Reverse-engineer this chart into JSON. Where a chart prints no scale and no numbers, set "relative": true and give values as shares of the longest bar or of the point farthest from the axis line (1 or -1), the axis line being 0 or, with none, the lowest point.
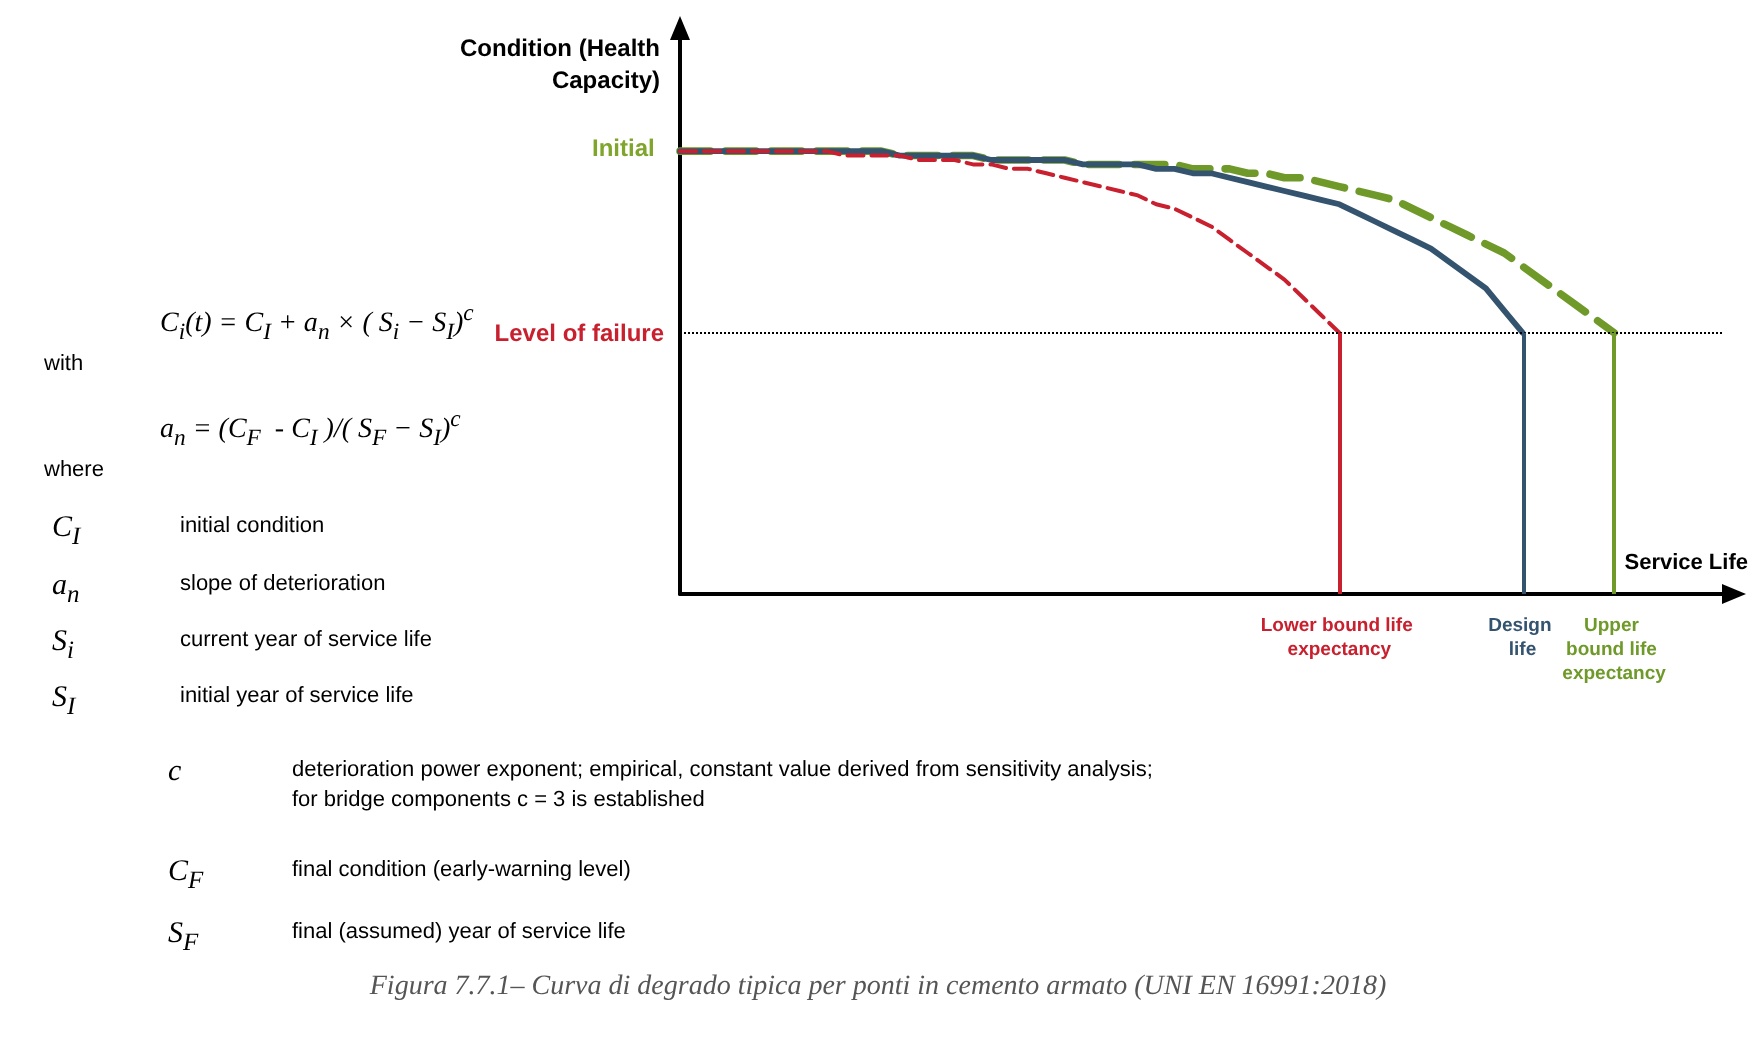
{
  "chart_data": {
    "type": "line",
    "title": "Figura 7.7.1– Curva di degrado tipica per ponti in cemento armato (UNI EN 16991:2018)",
    "xlabel": "Service Life",
    "ylabel": "Condition (Health Capacity)",
    "relative": true,
    "marker": "none",
    "categories": [
      null,
      null,
      null,
      null,
      null,
      null,
      null,
      null,
      null,
      null,
      null,
      null,
      null,
      null,
      null,
      null,
      null,
      null,
      null,
      null,
      null,
      null,
      null,
      null,
      null,
      null,
      null,
      null,
      null,
      null,
      null,
      null,
      null,
      null,
      null,
      null,
      "Lower bound life expectancy",
      null,
      null,
      null,
      null,
      null,
      null,
      null,
      null,
      null,
      "Design life",
      null,
      null,
      null,
      null,
      "Upper bound life expectancy",
      null,
      null,
      null,
      null,
      null,
      null
    ],
    "series": [
      {
        "color": "#c8202e",
        "line_style": "dashed",
        "values": [
          1.0,
          1.0,
          1.0,
          1.0,
          1.0,
          1.0,
          1.0,
          1.0,
          1.0,
          0.99,
          0.99,
          0.99,
          0.99,
          0.98,
          0.98,
          0.98,
          0.97,
          0.97,
          0.96,
          0.96,
          0.95,
          0.94,
          0.93,
          0.92,
          0.91,
          0.9,
          0.88,
          0.87,
          0.85,
          0.83,
          0.8,
          0.77,
          0.74,
          0.71,
          0.67,
          0.63,
          0.59,
          null,
          null,
          null,
          null,
          null,
          null,
          null,
          null,
          null,
          null,
          null,
          null,
          null,
          null,
          null,
          null,
          null,
          null,
          null,
          null,
          null
        ]
      },
      {
        "color": "#34536f",
        "line_style": "solid",
        "values": [
          1.0,
          1.0,
          1.0,
          1.0,
          1.0,
          1.0,
          1.0,
          1.0,
          1.0,
          1.0,
          1.0,
          1.0,
          0.99,
          0.99,
          0.99,
          0.99,
          0.99,
          0.98,
          0.98,
          0.98,
          0.98,
          0.98,
          0.97,
          0.97,
          0.97,
          0.97,
          0.96,
          0.96,
          0.95,
          0.95,
          0.94,
          0.93,
          0.92,
          0.91,
          0.9,
          0.89,
          0.88,
          0.86,
          0.84,
          0.82,
          0.8,
          0.78,
          0.75,
          0.72,
          0.69,
          0.64,
          0.59,
          null,
          null,
          null,
          null,
          null,
          null,
          null,
          null,
          null,
          null,
          null
        ]
      },
      {
        "color": "#6f9a2a",
        "line_style": "dashed",
        "values": [
          1.0,
          1.0,
          1.0,
          1.0,
          1.0,
          1.0,
          1.0,
          1.0,
          1.0,
          1.0,
          1.0,
          1.0,
          0.99,
          0.99,
          0.99,
          0.99,
          0.99,
          0.98,
          0.98,
          0.98,
          0.98,
          0.98,
          0.97,
          0.97,
          0.97,
          0.97,
          0.97,
          0.97,
          0.96,
          0.96,
          0.96,
          0.95,
          0.95,
          0.94,
          0.94,
          0.93,
          0.92,
          0.91,
          0.9,
          0.89,
          0.87,
          0.85,
          0.83,
          0.81,
          0.79,
          0.77,
          0.74,
          0.71,
          0.68,
          0.65,
          0.62,
          0.59,
          null,
          null,
          null,
          null,
          null,
          null
        ]
      }
    ],
    "ref_lines": [
      {
        "axis": "y",
        "value": 0.59,
        "label": "Level of failure",
        "line_style": "dotted",
        "color": "#000000"
      },
      {
        "axis": "x",
        "value": "Lower bound life expectancy",
        "color": "#c8202e"
      },
      {
        "axis": "x",
        "value": "Design life",
        "color": "#34536f"
      },
      {
        "axis": "x",
        "value": "Upper bound life expectancy",
        "color": "#6f9a2a"
      }
    ],
    "annotations": [
      "Initial",
      "C$_{i}$(t) = C$_{I}$ + a$_{n}$ × ( S$_{i}$ − S$_{I}$)$^{c}$",
      "with",
      "a$_{n}$ = (C$_{F}$  - C$_{I}$ )/( S$_{F}$ − S$_{I}$)$^{c}$",
      "where",
      "C$_{I}$\tinitial condition",
      "a$_{n}$\tslope of deterioration",
      "S$_{i}$\tcurrent year of service life",
      "S$_{I}$\tinitial year of service life",
      "c\tdeterioration power exponent; empirical, constant value derived from sensitivity analysis;\nfor bridge components c = 3 is established",
      "C$_{F}$\tfinal condition (early-warning level)",
      "S$_{F}$\tfinal (assumed) year of service life"
    ]
  }
}
